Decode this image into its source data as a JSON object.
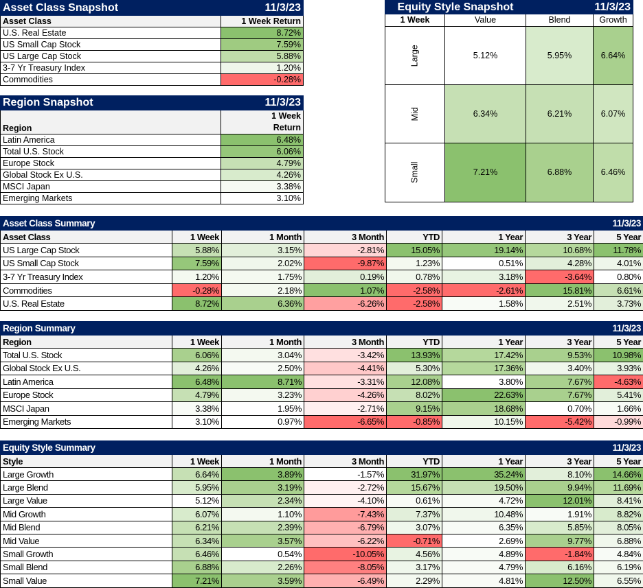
{
  "asset_snapshot": {
    "title": "Asset Class Snapshot",
    "date": "11/3/23",
    "col_label": "Asset Class",
    "col_value": "1 Week Return",
    "rows": [
      {
        "name": "U.S. Real Estate",
        "v": "8.72%",
        "c": "#8BC16E"
      },
      {
        "name": "US Small Cap Stock",
        "v": "7.59%",
        "c": "#9FCB81"
      },
      {
        "name": "US Large Cap Stock",
        "v": "5.88%",
        "c": "#C0DDAA"
      },
      {
        "name": "3-7 Yr Treasury Index",
        "v": "1.20%",
        "c": "#EFF6EA"
      },
      {
        "name": "Commodities",
        "v": "-0.28%",
        "c": "#FF6B6B"
      }
    ]
  },
  "region_snapshot": {
    "title": "Region Snapshot",
    "date": "11/3/23",
    "col_label": "Region",
    "col_value_1": "1 Week",
    "col_value_2": "Return",
    "rows": [
      {
        "name": "Latin America",
        "v": "6.48%",
        "c": "#8BC16E"
      },
      {
        "name": "Total U.S. Stock",
        "v": "6.06%",
        "c": "#96C77A"
      },
      {
        "name": "Europe Stock",
        "v": "4.79%",
        "c": "#C6E0B4"
      },
      {
        "name": "Global Stock Ex U.S.",
        "v": "4.26%",
        "c": "#D8EBCC"
      },
      {
        "name": "MSCI Japan",
        "v": "3.38%",
        "c": "#F6FAF3"
      },
      {
        "name": "Emerging Markets",
        "v": "3.10%",
        "c": "#FFFFFF"
      }
    ]
  },
  "style_snapshot": {
    "title": "Equity Style Snapshot",
    "date": "11/3/23",
    "corner": "1 Week",
    "cols": [
      "Value",
      "Blend",
      "Growth"
    ],
    "rows": [
      {
        "name": "Large",
        "cells": [
          {
            "v": "5.12%",
            "c": "#FFFFFF"
          },
          {
            "v": "5.95%",
            "c": "#D8EBCC"
          },
          {
            "v": "6.64%",
            "c": "#A9D08E"
          }
        ]
      },
      {
        "name": "Mid",
        "cells": [
          {
            "v": "6.34%",
            "c": "#C6E0B4"
          },
          {
            "v": "6.21%",
            "c": "#C6E0B4"
          },
          {
            "v": "6.07%",
            "c": "#D0E6C0"
          }
        ]
      },
      {
        "name": "Small",
        "cells": [
          {
            "v": "7.21%",
            "c": "#8BC16E"
          },
          {
            "v": "6.88%",
            "c": "#A9D08E"
          },
          {
            "v": "6.46%",
            "c": "#C0DDAA"
          }
        ]
      }
    ]
  },
  "cols": [
    "1 Week",
    "1 Month",
    "3 Month",
    "YTD",
    "1 Year",
    "3 Year",
    "5 Year"
  ],
  "asset_summary": {
    "title": "Asset Class Summary",
    "date": "11/3/23",
    "col_label": "Asset Class",
    "rows": [
      {
        "name": "US Large Cap Stock",
        "cells": [
          {
            "v": "5.88%",
            "c": "#C6E0B4"
          },
          {
            "v": "3.15%",
            "c": "#E2EFDA"
          },
          {
            "v": "-2.81%",
            "c": "#FFD6D6"
          },
          {
            "v": "15.05%",
            "c": "#8BC16E"
          },
          {
            "v": "19.14%",
            "c": "#96C77A"
          },
          {
            "v": "10.68%",
            "c": "#B5D89C"
          },
          {
            "v": "11.78%",
            "c": "#8BC16E"
          }
        ]
      },
      {
        "name": "US Small Cap Stock",
        "cells": [
          {
            "v": "7.59%",
            "c": "#96C77A"
          },
          {
            "v": "2.02%",
            "c": "#F0F7EC"
          },
          {
            "v": "-9.87%",
            "c": "#FF6B6B"
          },
          {
            "v": "1.23%",
            "c": "#F4F9F0"
          },
          {
            "v": "0.51%",
            "c": "#FFFFFF"
          },
          {
            "v": "4.28%",
            "c": "#E2EFDA"
          },
          {
            "v": "4.01%",
            "c": "#EEF6EA"
          }
        ]
      },
      {
        "name": "3-7 Yr Treasury Index",
        "cells": [
          {
            "v": "1.20%",
            "c": "#F4F9F0"
          },
          {
            "v": "1.75%",
            "c": "#F4F9F0"
          },
          {
            "v": "0.19%",
            "c": "#E2EFDA"
          },
          {
            "v": "0.78%",
            "c": "#F0F7EC"
          },
          {
            "v": "3.18%",
            "c": "#E8F3E2"
          },
          {
            "v": "-3.64%",
            "c": "#FF6B6B"
          },
          {
            "v": "0.80%",
            "c": "#FFFFFF"
          }
        ]
      },
      {
        "name": "Commodities",
        "cells": [
          {
            "v": "-0.28%",
            "c": "#FF6B6B"
          },
          {
            "v": "2.18%",
            "c": "#F4F9F0"
          },
          {
            "v": "1.07%",
            "c": "#8BC16E"
          },
          {
            "v": "-2.58%",
            "c": "#FF6B6B"
          },
          {
            "v": "-2.61%",
            "c": "#FF6B6B"
          },
          {
            "v": "15.81%",
            "c": "#8BC16E"
          },
          {
            "v": "6.61%",
            "c": "#C6E0B4"
          }
        ]
      },
      {
        "name": "U.S. Real Estate",
        "cells": [
          {
            "v": "8.72%",
            "c": "#8BC16E"
          },
          {
            "v": "6.36%",
            "c": "#A9D08E"
          },
          {
            "v": "-6.26%",
            "c": "#FFA0A0"
          },
          {
            "v": "-2.58%",
            "c": "#FF6B6B"
          },
          {
            "v": "1.58%",
            "c": "#F8FBF6"
          },
          {
            "v": "2.51%",
            "c": "#F0F7EC"
          },
          {
            "v": "3.73%",
            "c": "#E2EFDA"
          }
        ]
      }
    ]
  },
  "region_summary": {
    "title": "Region Summary",
    "date": "11/3/23",
    "col_label": "Region",
    "rows": [
      {
        "name": "Total U.S. Stock",
        "cells": [
          {
            "v": "6.06%",
            "c": "#A9D08E"
          },
          {
            "v": "3.04%",
            "c": "#F4F9F0"
          },
          {
            "v": "-3.42%",
            "c": "#FFE0E0"
          },
          {
            "v": "13.93%",
            "c": "#8BC16E"
          },
          {
            "v": "17.42%",
            "c": "#B5D89C"
          },
          {
            "v": "9.53%",
            "c": "#A9D08E"
          },
          {
            "v": "10.98%",
            "c": "#8BC16E"
          }
        ]
      },
      {
        "name": "Global Stock Ex U.S.",
        "cells": [
          {
            "v": "4.26%",
            "c": "#E2EFDA"
          },
          {
            "v": "2.50%",
            "c": "#F8FBF6"
          },
          {
            "v": "-4.41%",
            "c": "#FFC8C8"
          },
          {
            "v": "5.30%",
            "c": "#E2EFDA"
          },
          {
            "v": "17.36%",
            "c": "#B5D89C"
          },
          {
            "v": "3.40%",
            "c": "#F0F7EC"
          },
          {
            "v": "3.93%",
            "c": "#E8F3E2"
          }
        ]
      },
      {
        "name": "Latin America",
        "cells": [
          {
            "v": "6.48%",
            "c": "#8BC16E"
          },
          {
            "v": "8.71%",
            "c": "#8BC16E"
          },
          {
            "v": "-3.31%",
            "c": "#FFE0E0"
          },
          {
            "v": "12.08%",
            "c": "#A9D08E"
          },
          {
            "v": "3.80%",
            "c": "#FFFFFF"
          },
          {
            "v": "7.67%",
            "c": "#A9D08E"
          },
          {
            "v": "-4.63%",
            "c": "#FF6B6B"
          }
        ]
      },
      {
        "name": "Europe Stock",
        "cells": [
          {
            "v": "4.79%",
            "c": "#C6E0B4"
          },
          {
            "v": "3.23%",
            "c": "#F4F9F0"
          },
          {
            "v": "-4.26%",
            "c": "#FFD0D0"
          },
          {
            "v": "8.02%",
            "c": "#C6E0B4"
          },
          {
            "v": "22.63%",
            "c": "#8BC16E"
          },
          {
            "v": "7.67%",
            "c": "#A9D08E"
          },
          {
            "v": "5.41%",
            "c": "#E2EFDA"
          }
        ]
      },
      {
        "name": "MSCI Japan",
        "cells": [
          {
            "v": "3.38%",
            "c": "#F8FBF6"
          },
          {
            "v": "1.95%",
            "c": "#FFFFFF"
          },
          {
            "v": "-2.71%",
            "c": "#FFF0F0"
          },
          {
            "v": "9.15%",
            "c": "#A9D08E"
          },
          {
            "v": "18.68%",
            "c": "#A9D08E"
          },
          {
            "v": "0.70%",
            "c": "#FFFFFF"
          },
          {
            "v": "1.66%",
            "c": "#F8FBF6"
          }
        ]
      },
      {
        "name": "Emerging Markets",
        "cells": [
          {
            "v": "3.10%",
            "c": "#FFFFFF"
          },
          {
            "v": "0.97%",
            "c": "#FFFFFF"
          },
          {
            "v": "-6.65%",
            "c": "#FF6B6B"
          },
          {
            "v": "-0.85%",
            "c": "#FF6B6B"
          },
          {
            "v": "10.15%",
            "c": "#F0F7EC"
          },
          {
            "v": "-5.42%",
            "c": "#FF6B6B"
          },
          {
            "v": "-0.99%",
            "c": "#FFDADA"
          }
        ]
      }
    ]
  },
  "style_summary": {
    "title": "Equity Style Summary",
    "date": "11/3/23",
    "col_label": "Style",
    "rows": [
      {
        "name": "Large Growth",
        "cells": [
          {
            "v": "6.64%",
            "c": "#C6E0B4"
          },
          {
            "v": "3.89%",
            "c": "#8BC16E"
          },
          {
            "v": "-1.57%",
            "c": "#FFFFFF"
          },
          {
            "v": "31.97%",
            "c": "#8BC16E"
          },
          {
            "v": "35.24%",
            "c": "#8BC16E"
          },
          {
            "v": "8.10%",
            "c": "#E2EFDA"
          },
          {
            "v": "14.66%",
            "c": "#8BC16E"
          }
        ]
      },
      {
        "name": "Large Blend",
        "cells": [
          {
            "v": "5.95%",
            "c": "#D8EBCC"
          },
          {
            "v": "3.19%",
            "c": "#A9D08E"
          },
          {
            "v": "-2.72%",
            "c": "#FFF0F0"
          },
          {
            "v": "15.67%",
            "c": "#B5D89C"
          },
          {
            "v": "19.50%",
            "c": "#C6E0B4"
          },
          {
            "v": "9.94%",
            "c": "#A9D08E"
          },
          {
            "v": "11.69%",
            "c": "#B5D89C"
          }
        ]
      },
      {
        "name": "Large Value",
        "cells": [
          {
            "v": "5.12%",
            "c": "#FFFFFF"
          },
          {
            "v": "2.34%",
            "c": "#C6E0B4"
          },
          {
            "v": "-4.10%",
            "c": "#FFF4F4"
          },
          {
            "v": "0.61%",
            "c": "#F8FBF6"
          },
          {
            "v": "4.72%",
            "c": "#F8FBF6"
          },
          {
            "v": "12.01%",
            "c": "#8BC16E"
          },
          {
            "v": "8.41%",
            "c": "#E2EFDA"
          }
        ]
      },
      {
        "name": "Mid Growth",
        "cells": [
          {
            "v": "6.07%",
            "c": "#D8EBCC"
          },
          {
            "v": "1.10%",
            "c": "#F4F9F0"
          },
          {
            "v": "-7.43%",
            "c": "#FF9B9B"
          },
          {
            "v": "7.37%",
            "c": "#E2EFDA"
          },
          {
            "v": "10.48%",
            "c": "#F0F7EC"
          },
          {
            "v": "1.91%",
            "c": "#F8FBF6"
          },
          {
            "v": "8.82%",
            "c": "#D8EBCC"
          }
        ]
      },
      {
        "name": "Mid Blend",
        "cells": [
          {
            "v": "6.21%",
            "c": "#C6E0B4"
          },
          {
            "v": "2.39%",
            "c": "#C6E0B4"
          },
          {
            "v": "-6.79%",
            "c": "#FFB0B0"
          },
          {
            "v": "3.07%",
            "c": "#F0F7EC"
          },
          {
            "v": "6.35%",
            "c": "#F8FBF6"
          },
          {
            "v": "5.85%",
            "c": "#D8EBCC"
          },
          {
            "v": "8.05%",
            "c": "#E2EFDA"
          }
        ]
      },
      {
        "name": "Mid Value",
        "cells": [
          {
            "v": "6.34%",
            "c": "#C6E0B4"
          },
          {
            "v": "3.57%",
            "c": "#A9D08E"
          },
          {
            "v": "-6.22%",
            "c": "#FFC0C0"
          },
          {
            "v": "-0.71%",
            "c": "#FF6B6B"
          },
          {
            "v": "2.69%",
            "c": "#FFFFFF"
          },
          {
            "v": "9.77%",
            "c": "#A9D08E"
          },
          {
            "v": "6.88%",
            "c": "#F0F7EC"
          }
        ]
      },
      {
        "name": "Small Growth",
        "cells": [
          {
            "v": "6.46%",
            "c": "#C6E0B4"
          },
          {
            "v": "0.54%",
            "c": "#FFFFFF"
          },
          {
            "v": "-10.05%",
            "c": "#FF6B6B"
          },
          {
            "v": "4.56%",
            "c": "#E8F3E2"
          },
          {
            "v": "4.89%",
            "c": "#F8FBF6"
          },
          {
            "v": "-1.84%",
            "c": "#FF6B6B"
          },
          {
            "v": "4.84%",
            "c": "#F8FBF6"
          }
        ]
      },
      {
        "name": "Small Blend",
        "cells": [
          {
            "v": "6.88%",
            "c": "#A9D08E"
          },
          {
            "v": "2.26%",
            "c": "#D8EBCC"
          },
          {
            "v": "-8.05%",
            "c": "#FF8080"
          },
          {
            "v": "3.17%",
            "c": "#F0F7EC"
          },
          {
            "v": "4.79%",
            "c": "#F8FBF6"
          },
          {
            "v": "6.16%",
            "c": "#D8EBCC"
          },
          {
            "v": "6.19%",
            "c": "#F4F9F0"
          }
        ]
      },
      {
        "name": "Small Value",
        "cells": [
          {
            "v": "7.21%",
            "c": "#8BC16E"
          },
          {
            "v": "3.59%",
            "c": "#A9D08E"
          },
          {
            "v": "-6.49%",
            "c": "#FFB0B0"
          },
          {
            "v": "2.29%",
            "c": "#F4F9F0"
          },
          {
            "v": "4.81%",
            "c": "#F8FBF6"
          },
          {
            "v": "12.50%",
            "c": "#8BC16E"
          },
          {
            "v": "6.55%",
            "c": "#F0F7EC"
          }
        ]
      }
    ]
  }
}
